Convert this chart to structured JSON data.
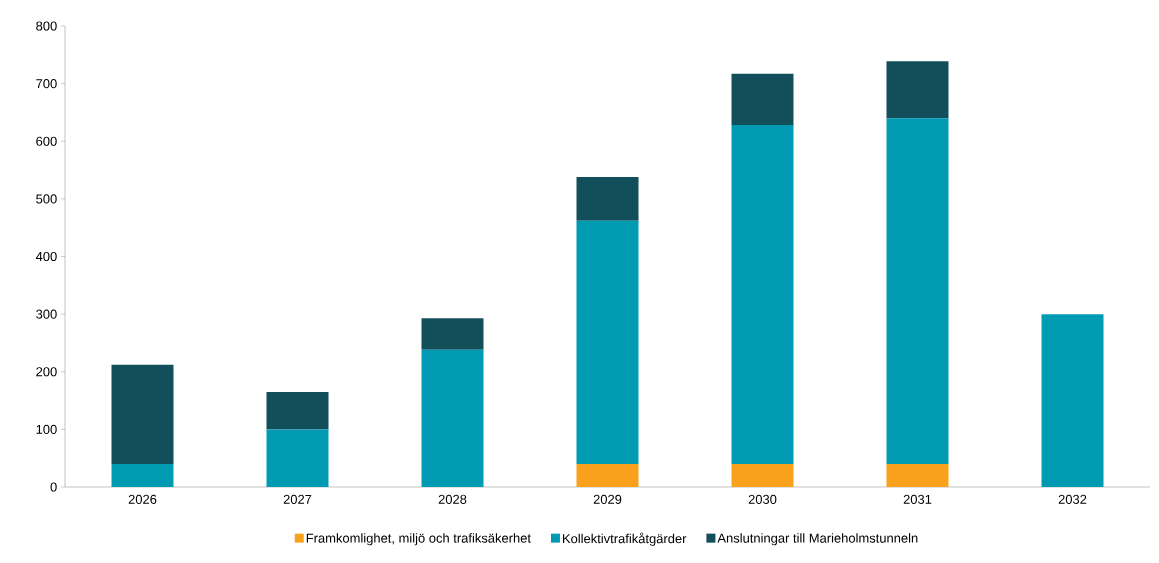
{
  "chart_data": {
    "type": "bar",
    "stacked": true,
    "categories": [
      "2026",
      "2027",
      "2028",
      "2029",
      "2030",
      "2031",
      "2032"
    ],
    "series": [
      {
        "name": "Framkomlighet, miljö och trafiksäkerhet",
        "color": "#f9a11b",
        "values": [
          0,
          0,
          0,
          40,
          40,
          40,
          0
        ]
      },
      {
        "name": "Kollektivtrafikåtgärder",
        "color": "#009bb3",
        "values": [
          40,
          100,
          238,
          422,
          588,
          600,
          300
        ]
      },
      {
        "name": "Anslutningar till Marieholmstunneln",
        "color": "#134f5b",
        "values": [
          172,
          65,
          55,
          76,
          89,
          99,
          0
        ]
      }
    ],
    "ylim": [
      0,
      800
    ],
    "yticks": [
      0,
      100,
      200,
      300,
      400,
      500,
      600,
      700,
      800
    ],
    "grid": false,
    "legend": "bottom"
  }
}
